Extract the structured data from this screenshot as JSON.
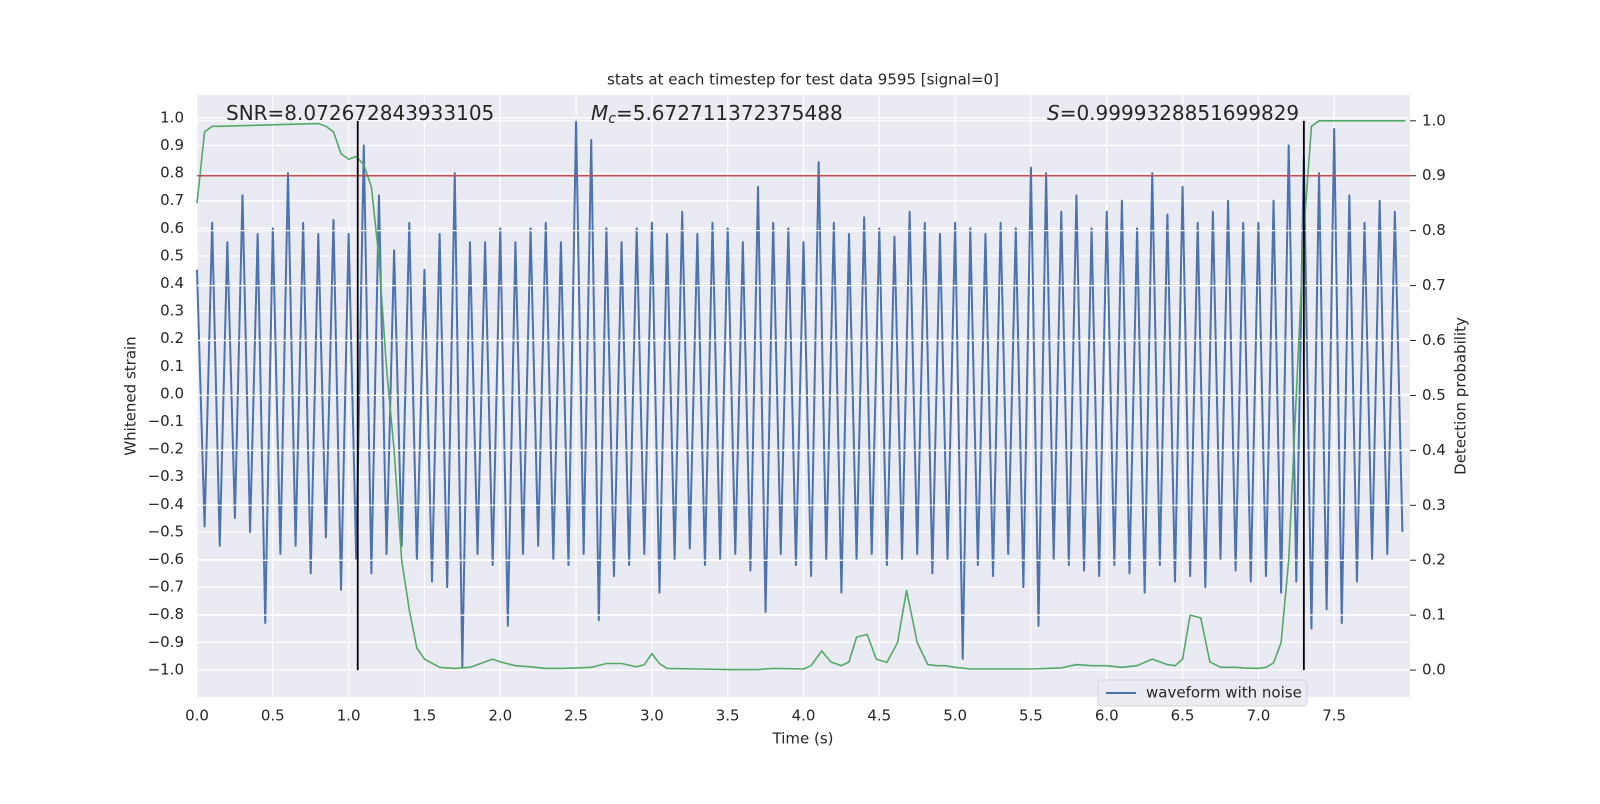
{
  "chart_data": {
    "type": "line",
    "title": "stats at each timestep for test data 9595 [signal=0]",
    "xlabel": "Time (s)",
    "ylabel": "Whitened strain",
    "y2label": "Detection probability",
    "annotations": [
      {
        "text": "SNR=8.072672843933105"
      },
      {
        "symbol": "M",
        "subscript": "c",
        "text": "=5.672711372375488"
      },
      {
        "symbol": "S",
        "text": "=0.9999328851699829"
      }
    ],
    "xlim": [
      0,
      8
    ],
    "ylim": [
      -1.098,
      1.083
    ],
    "y2lim": [
      -0.049,
      1.047
    ],
    "grid": true,
    "legend": "lower right",
    "xticks": [
      {
        "value": 0,
        "label": "0.0"
      },
      {
        "value": 0.5,
        "label": "0.5"
      },
      {
        "value": 1,
        "label": "1.0"
      },
      {
        "value": 1.5,
        "label": "1.5"
      },
      {
        "value": 2,
        "label": "2.0"
      },
      {
        "value": 2.5,
        "label": "2.5"
      },
      {
        "value": 3,
        "label": "3.0"
      },
      {
        "value": 3.5,
        "label": "3.5"
      },
      {
        "value": 4,
        "label": "4.0"
      },
      {
        "value": 4.5,
        "label": "4.5"
      },
      {
        "value": 5,
        "label": "5.0"
      },
      {
        "value": 5.5,
        "label": "5.5"
      },
      {
        "value": 6,
        "label": "6.0"
      },
      {
        "value": 6.5,
        "label": "6.5"
      },
      {
        "value": 7,
        "label": "7.0"
      },
      {
        "value": 7.5,
        "label": "7.5"
      }
    ],
    "yticks": [
      {
        "value": -1,
        "label": "−1.0"
      },
      {
        "value": -0.9,
        "label": "−0.9"
      },
      {
        "value": -0.8,
        "label": "−0.8"
      },
      {
        "value": -0.7,
        "label": "−0.7"
      },
      {
        "value": -0.6,
        "label": "−0.6"
      },
      {
        "value": -0.5,
        "label": "−0.5"
      },
      {
        "value": -0.4,
        "label": "−0.4"
      },
      {
        "value": -0.3,
        "label": "−0.3"
      },
      {
        "value": -0.2,
        "label": "−0.2"
      },
      {
        "value": -0.1,
        "label": "−0.1"
      },
      {
        "value": 0,
        "label": "0.0"
      },
      {
        "value": 0.1,
        "label": "0.1"
      },
      {
        "value": 0.2,
        "label": "0.2"
      },
      {
        "value": 0.3,
        "label": "0.3"
      },
      {
        "value": 0.4,
        "label": "0.4"
      },
      {
        "value": 0.5,
        "label": "0.5"
      },
      {
        "value": 0.6,
        "label": "0.6"
      },
      {
        "value": 0.7,
        "label": "0.7"
      },
      {
        "value": 0.8,
        "label": "0.8"
      },
      {
        "value": 0.9,
        "label": "0.9"
      },
      {
        "value": 1,
        "label": "1.0"
      }
    ],
    "y2ticks": [
      {
        "value": 0,
        "label": "0.0"
      },
      {
        "value": 0.1,
        "label": "0.1"
      },
      {
        "value": 0.2,
        "label": "0.2"
      },
      {
        "value": 0.3,
        "label": "0.3"
      },
      {
        "value": 0.4,
        "label": "0.4"
      },
      {
        "value": 0.5,
        "label": "0.5"
      },
      {
        "value": 0.6,
        "label": "0.6"
      },
      {
        "value": 0.7,
        "label": "0.7"
      },
      {
        "value": 0.8,
        "label": "0.8"
      },
      {
        "value": 0.9,
        "label": "0.9"
      },
      {
        "value": 1,
        "label": "1.0"
      }
    ],
    "series": [
      {
        "name": "waveform with noise",
        "color": "#4c72b0",
        "axis": "y",
        "x": [
          0,
          0.05,
          0.1,
          0.15,
          0.2,
          0.25,
          0.3,
          0.35,
          0.4,
          0.45,
          0.5,
          0.55,
          0.6,
          0.65,
          0.7,
          0.75,
          0.8,
          0.85,
          0.9,
          0.95,
          1,
          1.05,
          1.1,
          1.15,
          1.2,
          1.25,
          1.3,
          1.35,
          1.4,
          1.45,
          1.5,
          1.55,
          1.6,
          1.65,
          1.7,
          1.75,
          1.8,
          1.85,
          1.9,
          1.95,
          2,
          2.05,
          2.1,
          2.15,
          2.2,
          2.25,
          2.3,
          2.35,
          2.4,
          2.45,
          2.5,
          2.55,
          2.6,
          2.65,
          2.7,
          2.75,
          2.8,
          2.85,
          2.9,
          2.95,
          3,
          3.05,
          3.1,
          3.15,
          3.2,
          3.25,
          3.3,
          3.35,
          3.4,
          3.45,
          3.5,
          3.55,
          3.6,
          3.65,
          3.7,
          3.75,
          3.8,
          3.85,
          3.9,
          3.95,
          4,
          4.05,
          4.1,
          4.15,
          4.2,
          4.25,
          4.3,
          4.35,
          4.4,
          4.45,
          4.5,
          4.55,
          4.6,
          4.65,
          4.7,
          4.75,
          4.8,
          4.85,
          4.9,
          4.95,
          5,
          5.05,
          5.1,
          5.15,
          5.2,
          5.25,
          5.3,
          5.35,
          5.4,
          5.45,
          5.5,
          5.55,
          5.6,
          5.65,
          5.7,
          5.75,
          5.8,
          5.85,
          5.9,
          5.95,
          6,
          6.05,
          6.1,
          6.15,
          6.2,
          6.25,
          6.3,
          6.35,
          6.4,
          6.45,
          6.5,
          6.55,
          6.6,
          6.65,
          6.7,
          6.75,
          6.8,
          6.85,
          6.9,
          6.95,
          7,
          7.05,
          7.1,
          7.15,
          7.2,
          7.25,
          7.3,
          7.35,
          7.4,
          7.45,
          7.5,
          7.55,
          7.6,
          7.65,
          7.7,
          7.75,
          7.8,
          7.85,
          7.9,
          7.95
        ],
        "values": [
          0.45,
          -0.48,
          0.62,
          -0.55,
          0.55,
          -0.45,
          0.72,
          -0.5,
          0.58,
          -0.83,
          0.6,
          -0.58,
          0.8,
          -0.55,
          0.62,
          -0.65,
          0.58,
          -0.52,
          0.63,
          -0.71,
          0.58,
          -0.6,
          0.9,
          -0.65,
          0.72,
          -0.58,
          0.52,
          -0.55,
          0.62,
          -0.6,
          0.45,
          -0.68,
          0.58,
          -0.7,
          0.8,
          -0.99,
          0.55,
          -0.58,
          0.55,
          -0.62,
          0.6,
          -0.84,
          0.55,
          -0.58,
          0.6,
          -0.55,
          0.62,
          -0.6,
          0.55,
          -0.62,
          0.99,
          -0.58,
          0.92,
          -0.82,
          0.6,
          -0.66,
          0.55,
          -0.62,
          0.6,
          -0.58,
          0.62,
          -0.72,
          0.58,
          -0.6,
          0.66,
          -0.56,
          0.58,
          -0.62,
          0.62,
          -0.6,
          0.6,
          -0.58,
          0.55,
          -0.64,
          0.75,
          -0.79,
          0.62,
          -0.58,
          0.6,
          -0.62,
          0.55,
          -0.66,
          0.84,
          -0.6,
          0.62,
          -0.72,
          0.58,
          -0.6,
          0.64,
          -0.58,
          0.6,
          -0.62,
          0.57,
          -0.6,
          0.66,
          -0.58,
          0.62,
          -0.65,
          0.58,
          -0.6,
          0.62,
          -0.96,
          0.6,
          -0.62,
          0.58,
          -0.66,
          0.62,
          -0.58,
          0.6,
          -0.7,
          0.82,
          -0.84,
          0.8,
          -0.6,
          0.66,
          -0.62,
          0.72,
          -0.64,
          0.6,
          -0.66,
          0.66,
          -0.62,
          0.7,
          -0.65,
          0.6,
          -0.72,
          0.8,
          -0.62,
          0.65,
          -0.68,
          0.75,
          -0.66,
          0.62,
          -0.7,
          0.66,
          -0.6,
          0.7,
          -0.64,
          0.62,
          -0.68,
          0.62,
          -0.66,
          0.7,
          -0.72,
          0.9,
          -0.68,
          0.86,
          -0.85,
          0.8,
          -0.78,
          0.96,
          -0.83,
          0.72,
          -0.68,
          0.62,
          -0.6,
          0.7,
          -0.58,
          0.66,
          -0.5
        ]
      },
      {
        "color": "#55a868",
        "axis": "y2",
        "x": [
          0,
          0.05,
          0.1,
          0.15,
          0.8,
          0.85,
          0.9,
          0.95,
          1,
          1.05,
          1.1,
          1.15,
          1.2,
          1.25,
          1.3,
          1.35,
          1.4,
          1.45,
          1.5,
          1.6,
          1.7,
          1.8,
          1.9,
          1.95,
          2,
          2.1,
          2.2,
          2.3,
          2.4,
          2.5,
          2.6,
          2.7,
          2.8,
          2.9,
          2.95,
          3,
          3.05,
          3.1,
          3.3,
          3.5,
          3.7,
          3.8,
          4,
          4.05,
          4.12,
          4.18,
          4.25,
          4.3,
          4.35,
          4.42,
          4.48,
          4.55,
          4.62,
          4.68,
          4.75,
          4.82,
          4.88,
          4.93,
          5,
          5.1,
          5.3,
          5.5,
          5.7,
          5.8,
          5.9,
          6,
          6.1,
          6.2,
          6.3,
          6.4,
          6.45,
          6.5,
          6.55,
          6.62,
          6.68,
          6.75,
          6.85,
          6.9,
          7,
          7.05,
          7.1,
          7.15,
          7.2,
          7.25,
          7.3,
          7.35,
          7.4,
          7.5,
          7.97
        ],
        "values": [
          0.85,
          0.98,
          0.99,
          0.99,
          0.995,
          0.99,
          0.98,
          0.94,
          0.93,
          0.935,
          0.92,
          0.88,
          0.75,
          0.55,
          0.4,
          0.2,
          0.11,
          0.04,
          0.02,
          0.005,
          0.003,
          0.005,
          0.015,
          0.02,
          0.015,
          0.008,
          0.006,
          0.003,
          0.003,
          0.004,
          0.005,
          0.012,
          0.012,
          0.006,
          0.01,
          0.03,
          0.012,
          0.003,
          0.002,
          0.001,
          0.001,
          0.003,
          0.002,
          0.008,
          0.035,
          0.015,
          0.008,
          0.015,
          0.06,
          0.065,
          0.02,
          0.014,
          0.05,
          0.145,
          0.05,
          0.01,
          0.008,
          0.008,
          0.005,
          0.002,
          0.002,
          0.002,
          0.004,
          0.01,
          0.008,
          0.008,
          0.005,
          0.008,
          0.02,
          0.01,
          0.008,
          0.02,
          0.1,
          0.095,
          0.015,
          0.005,
          0.005,
          0.004,
          0.003,
          0.005,
          0.013,
          0.05,
          0.2,
          0.5,
          0.8,
          0.99,
          1,
          1,
          1
        ]
      }
    ],
    "vlines": {
      "x": [
        1.06,
        7.3
      ],
      "ymin": 0,
      "ymax": 1,
      "axis": "y2",
      "color": "#000000"
    },
    "hline": {
      "y": 0.9,
      "axis": "y2",
      "color": "#c44e52"
    },
    "background": "#eaeaf2"
  }
}
